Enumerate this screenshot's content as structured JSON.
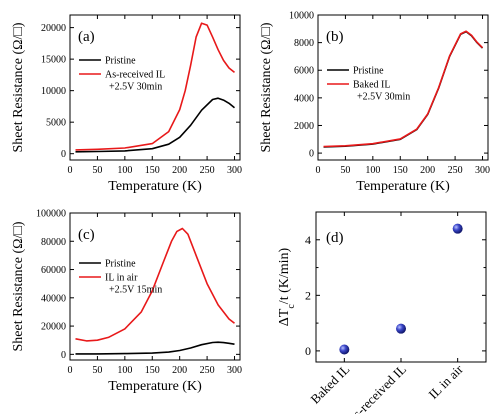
{
  "chart_data": [
    {
      "id": "a",
      "type": "line",
      "panel_label": "(a)",
      "xlabel": "Temperature (K)",
      "ylabel": "Sheet Resistance (Ω/□)",
      "xlim": [
        0,
        310
      ],
      "ylim": [
        -1000,
        22000
      ],
      "xticks": [
        0,
        50,
        100,
        150,
        200,
        250,
        300
      ],
      "yticks": [
        0,
        5000,
        10000,
        15000,
        20000
      ],
      "legend_position": "top-left",
      "series": [
        {
          "name": "Pristine",
          "color": "#000000",
          "x": [
            10,
            50,
            100,
            150,
            180,
            200,
            220,
            240,
            260,
            270,
            280,
            290,
            300
          ],
          "y": [
            300,
            350,
            450,
            800,
            1500,
            2600,
            4500,
            6900,
            8600,
            8800,
            8500,
            8000,
            7300
          ]
        },
        {
          "name": "As-received IL",
          "note": "+2.5V 30min",
          "color": "#e8191a",
          "x": [
            10,
            50,
            100,
            150,
            180,
            200,
            210,
            220,
            230,
            240,
            250,
            260,
            270,
            280,
            290,
            300
          ],
          "y": [
            600,
            700,
            900,
            1600,
            3500,
            7000,
            10000,
            14000,
            18500,
            20700,
            20400,
            18500,
            16500,
            14800,
            13600,
            12900
          ]
        }
      ]
    },
    {
      "id": "b",
      "type": "line",
      "panel_label": "(b)",
      "xlabel": "Temperature (K)",
      "ylabel": "Sheet Resistance (Ω/□)",
      "xlim": [
        0,
        310
      ],
      "ylim": [
        -500,
        10000
      ],
      "xticks": [
        0,
        50,
        100,
        150,
        200,
        250,
        300
      ],
      "yticks": [
        0,
        2000,
        4000,
        6000,
        8000,
        10000
      ],
      "legend_position": "top-left",
      "series": [
        {
          "name": "Pristine",
          "color": "#000000",
          "x": [
            10,
            50,
            100,
            150,
            180,
            200,
            220,
            240,
            260,
            270,
            280,
            290,
            300
          ],
          "y": [
            450,
            500,
            650,
            1000,
            1700,
            2800,
            4700,
            7000,
            8600,
            8800,
            8500,
            8000,
            7600
          ]
        },
        {
          "name": "Baked IL",
          "note": "+2.5V 30min",
          "color": "#e8191a",
          "x": [
            10,
            50,
            100,
            150,
            180,
            200,
            220,
            240,
            260,
            270,
            280,
            290,
            300
          ],
          "y": [
            480,
            530,
            680,
            1030,
            1730,
            2830,
            4730,
            7030,
            8630,
            8830,
            8530,
            8030,
            7630
          ]
        }
      ]
    },
    {
      "id": "c",
      "type": "line",
      "panel_label": "(c)",
      "xlabel": "Temperature (K)",
      "ylabel": "Sheet Resistance (Ω/□)",
      "xlim": [
        0,
        310
      ],
      "ylim": [
        -4000,
        100000
      ],
      "xticks": [
        0,
        50,
        100,
        150,
        200,
        250,
        300
      ],
      "yticks": [
        0,
        20000,
        40000,
        60000,
        80000,
        100000
      ],
      "legend_position": "top-left",
      "series": [
        {
          "name": "Pristine",
          "color": "#000000",
          "x": [
            10,
            50,
            100,
            150,
            180,
            200,
            220,
            240,
            260,
            270,
            280,
            290,
            300
          ],
          "y": [
            300,
            350,
            500,
            900,
            1600,
            2700,
            4500,
            6800,
            8400,
            8600,
            8300,
            7800,
            7200
          ]
        },
        {
          "name": "IL in air",
          "note": "+2.5V 15min",
          "color": "#e8191a",
          "x": [
            10,
            30,
            50,
            70,
            100,
            130,
            150,
            170,
            185,
            195,
            205,
            215,
            230,
            250,
            270,
            290,
            300
          ],
          "y": [
            11000,
            9500,
            10000,
            12000,
            18000,
            30000,
            45000,
            65000,
            80000,
            87000,
            89000,
            85000,
            70000,
            50000,
            35000,
            25000,
            22000
          ]
        }
      ]
    },
    {
      "id": "d",
      "type": "scatter",
      "panel_label": "(d)",
      "ylabel": "ΔTc/t (K/min)",
      "ylim": [
        -0.4,
        5.0
      ],
      "yticks": [
        0,
        2,
        4
      ],
      "categories": [
        "Baked IL",
        "As-received IL",
        "IL in air"
      ],
      "values": [
        0.05,
        0.8,
        4.4
      ],
      "marker_color": "#3b47c9"
    }
  ]
}
